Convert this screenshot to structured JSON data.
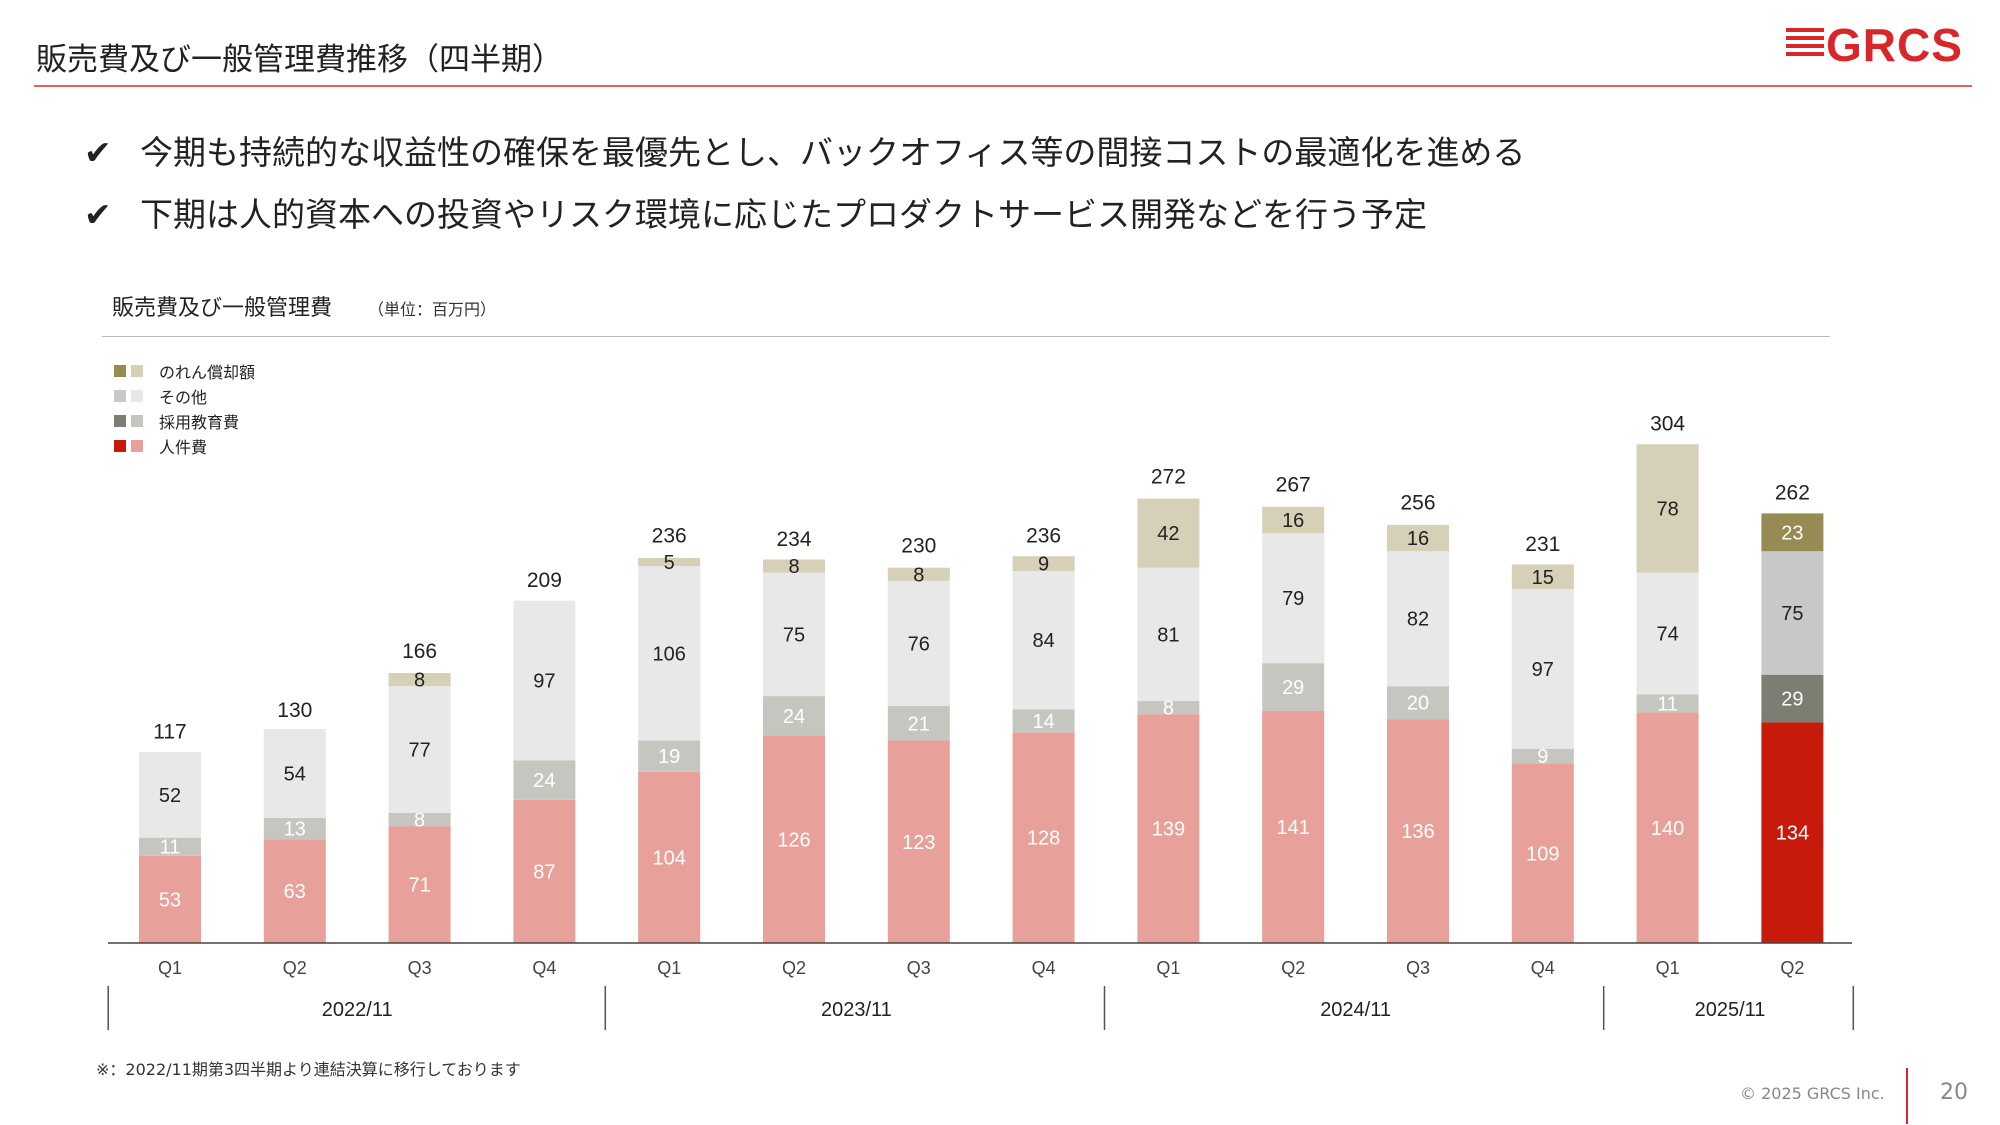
{
  "header": {
    "title": "販売費及び一般管理費推移（四半期）",
    "logo_text": "GRCS"
  },
  "bullets": [
    "今期も持続的な収益性の確保を最優先とし、バックオフィス等の間接コストの最適化を進める",
    "下期は人的資本への投資やリスク環境に応じたプロダクトサービス開発などを行う予定"
  ],
  "chart_title": "販売費及び一般管理費",
  "chart_unit": "（単位：百万円）",
  "legend": [
    {
      "label": "のれん償却額",
      "color_dark": "#958b53",
      "color_light": "#d6d0b8"
    },
    {
      "label": "その他",
      "color_dark": "#c8c8c8",
      "color_light": "#e8e8e8"
    },
    {
      "label": "採用教育費",
      "color_dark": "#7d7d72",
      "color_light": "#c6c6c0"
    },
    {
      "label": "人件費",
      "color_dark": "#c81a0a",
      "color_light": "#e8a09a"
    }
  ],
  "chart_data": {
    "type": "bar",
    "stacked": true,
    "categories": [
      "Q1",
      "Q2",
      "Q3",
      "Q4",
      "Q1",
      "Q2",
      "Q3",
      "Q4",
      "Q1",
      "Q2",
      "Q3",
      "Q4",
      "Q1",
      "Q2"
    ],
    "groups": [
      {
        "label": "2022/11",
        "count": 4
      },
      {
        "label": "2023/11",
        "count": 4
      },
      {
        "label": "2024/11",
        "count": 4
      },
      {
        "label": "2025/11",
        "count": 2
      }
    ],
    "series": [
      {
        "name": "人件費",
        "values": [
          53,
          63,
          71,
          87,
          104,
          126,
          123,
          128,
          139,
          141,
          136,
          109,
          140,
          134
        ]
      },
      {
        "name": "採用教育費",
        "values": [
          11,
          13,
          8,
          24,
          19,
          24,
          21,
          14,
          8,
          29,
          20,
          9,
          11,
          29
        ]
      },
      {
        "name": "その他",
        "values": [
          52,
          54,
          77,
          97,
          106,
          75,
          76,
          84,
          81,
          79,
          82,
          97,
          74,
          75
        ]
      },
      {
        "name": "のれん償却額",
        "values": [
          null,
          null,
          8,
          null,
          5,
          8,
          8,
          9,
          42,
          16,
          16,
          15,
          78,
          23
        ]
      }
    ],
    "totals": [
      117,
      130,
      166,
      209,
      236,
      234,
      230,
      236,
      272,
      267,
      256,
      231,
      304,
      262
    ],
    "highlight_index": 13,
    "ylim": [
      0,
      320
    ],
    "xlabel": "",
    "ylabel": ""
  },
  "footnote": "※：2022/11期第3四半期より連結決算に移行しております",
  "copyright": "© 2025 GRCS Inc.",
  "page_number": "20"
}
